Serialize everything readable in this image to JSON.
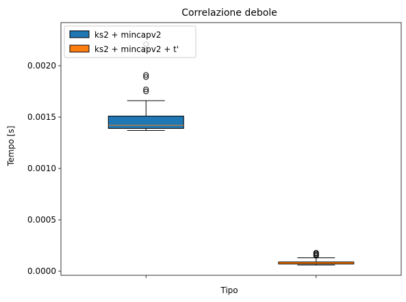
{
  "chart_data": {
    "type": "box",
    "title": "Correlazione debole",
    "xlabel": "Tipo",
    "ylabel": "Tempo [s]",
    "ylim": [
      -4e-05,
      0.00242
    ],
    "yticks": [
      "0.0000",
      "0.0005",
      "0.0010",
      "0.0015",
      "0.0020"
    ],
    "ytick_values": [
      0,
      0.0005,
      0.001,
      0.0015,
      0.002
    ],
    "legend_position": "top-left",
    "grid": false,
    "series": [
      {
        "name": "ks2 + mincapv2",
        "color": "#1f77b4",
        "whisker_low": 0.00137,
        "q1": 0.00139,
        "median": 0.00142,
        "q3": 0.00151,
        "whisker_high": 0.00166,
        "outliers": [
          0.00175,
          0.00177,
          0.00189,
          0.00191,
          0.00215,
          0.00221
        ]
      },
      {
        "name": "ks2 + mincapv2 + t'",
        "color": "#ff7f0e",
        "whisker_low": 6e-05,
        "q1": 7e-05,
        "median": 8e-05,
        "q3": 9e-05,
        "whisker_high": 0.00013,
        "outliers": [
          0.00015,
          0.00016,
          0.00017,
          0.00018
        ]
      }
    ]
  }
}
